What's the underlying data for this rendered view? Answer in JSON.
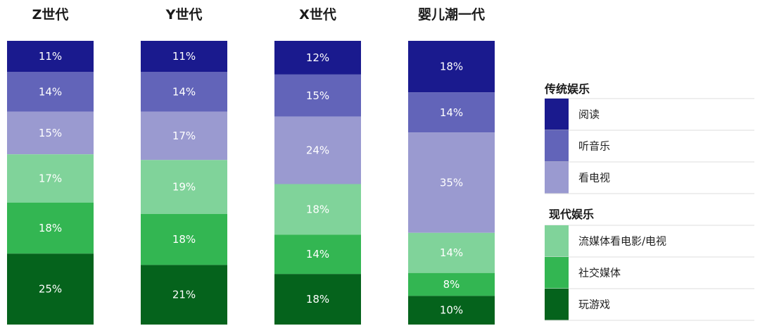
{
  "chart_data": {
    "type": "bar",
    "stacked": true,
    "normalized": true,
    "categories": [
      "Z世代",
      "Y世代",
      "X世代",
      "婴儿潮一代"
    ],
    "value_unit": "%",
    "series": [
      {
        "name": "阅读",
        "group": "传统娱乐",
        "color": "#1a1a8e",
        "values": [
          11,
          11,
          12,
          18
        ]
      },
      {
        "name": "听音乐",
        "group": "传统娱乐",
        "color": "#6264b9",
        "values": [
          14,
          14,
          15,
          14
        ]
      },
      {
        "name": "看电视",
        "group": "传统娱乐",
        "color": "#9a9ad0",
        "values": [
          15,
          17,
          24,
          35
        ]
      },
      {
        "name": "流媒体看电影/电视",
        "group": "现代娱乐",
        "color": "#80d39a",
        "values": [
          17,
          19,
          18,
          14
        ]
      },
      {
        "name": "社交媒体",
        "group": "现代娱乐",
        "color": "#33b652",
        "values": [
          18,
          18,
          14,
          8
        ]
      },
      {
        "name": "玩游戏",
        "group": "现代娱乐",
        "color": "#05631c",
        "values": [
          25,
          21,
          18,
          10
        ]
      }
    ],
    "legend": {
      "placement": "right",
      "groups": [
        {
          "title": "传统娱乐",
          "items": [
            "阅读",
            "听音乐",
            "看电视"
          ]
        },
        {
          "title": "现代娱乐",
          "items": [
            "流媒体看电影/电视",
            "社交媒体",
            "玩游戏"
          ]
        }
      ]
    },
    "grid": false
  }
}
